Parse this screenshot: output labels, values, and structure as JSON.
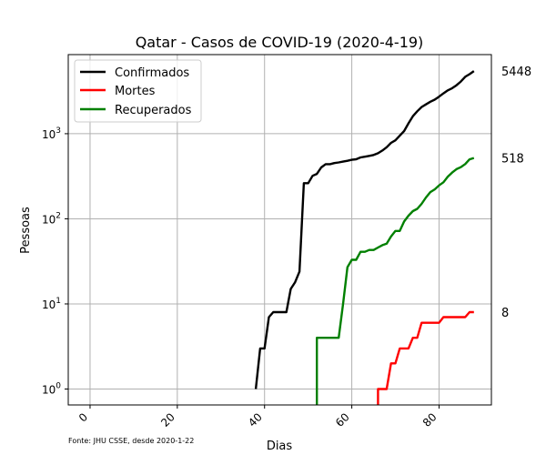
{
  "chart_data": {
    "type": "line",
    "title": "Qatar - Casos de COVID-19 (2020-4-19)",
    "xlabel": "Dias",
    "ylabel": "Pessoas",
    "yscale": "log",
    "xlim": [
      -5,
      92
    ],
    "ylim": [
      0.65,
      8500
    ],
    "grid": true,
    "legend_position": "top-left",
    "x_ticks": [
      0,
      20,
      40,
      60,
      80
    ],
    "x_tick_labels": [
      "0",
      "20",
      "40",
      "60",
      "80"
    ],
    "y_ticks": [
      1,
      10,
      100,
      1000
    ],
    "y_tick_labels": [
      "10^0",
      "10^1",
      "10^2",
      "10^3"
    ],
    "source_note": "Fonte: JHU CSSE, desde 2020-1-22",
    "series": [
      {
        "name": "Confirmados",
        "color": "#000000",
        "end_label": "5448",
        "x": [
          38,
          39,
          40,
          41,
          42,
          43,
          44,
          45,
          46,
          47,
          48,
          49,
          50,
          51,
          52,
          53,
          54,
          55,
          56,
          57,
          58,
          59,
          60,
          61,
          62,
          63,
          64,
          65,
          66,
          67,
          68,
          69,
          70,
          71,
          72,
          73,
          74,
          75,
          76,
          77,
          78,
          79,
          80,
          81,
          82,
          83,
          84,
          85,
          86,
          87,
          88
        ],
        "y": [
          1,
          3,
          3,
          7,
          8,
          8,
          8,
          8,
          15,
          18,
          24,
          262,
          262,
          320,
          337,
          401,
          439,
          439,
          452,
          460,
          470,
          481,
          494,
          501,
          526,
          537,
          549,
          562,
          590,
          634,
          693,
          781,
          835,
          949,
          1075,
          1325,
          1604,
          1832,
          2057,
          2210,
          2376,
          2512,
          2728,
          2979,
          3231,
          3428,
          3711,
          4103,
          4663,
          5008,
          5448
        ]
      },
      {
        "name": "Mortes",
        "color": "#ff0000",
        "end_label": "8",
        "x": [
          66,
          66,
          67,
          68,
          69,
          70,
          71,
          72,
          73,
          74,
          75,
          76,
          77,
          78,
          79,
          80,
          81,
          82,
          83,
          84,
          85,
          86,
          87,
          88
        ],
        "y": [
          0.5,
          1,
          1,
          1,
          2,
          2,
          3,
          3,
          3,
          4,
          4,
          6,
          6,
          6,
          6,
          6,
          7,
          7,
          7,
          7,
          7,
          7,
          8,
          8
        ]
      },
      {
        "name": "Recuperados",
        "color": "#008000",
        "end_label": "518",
        "x": [
          52,
          52,
          53,
          54,
          55,
          56,
          57,
          58,
          59,
          60,
          61,
          62,
          63,
          64,
          65,
          66,
          67,
          68,
          69,
          70,
          71,
          72,
          73,
          74,
          75,
          76,
          77,
          78,
          79,
          80,
          81,
          82,
          83,
          84,
          85,
          86,
          87,
          88
        ],
        "y": [
          0.5,
          4,
          4,
          4,
          4,
          4,
          4,
          10,
          27,
          33,
          33,
          41,
          41,
          43,
          43,
          46,
          49,
          51,
          62,
          72,
          72,
          93,
          109,
          123,
          131,
          150,
          178,
          206,
          222,
          247,
          269,
          313,
          350,
          383,
          404,
          440,
          500,
          518
        ]
      }
    ]
  }
}
